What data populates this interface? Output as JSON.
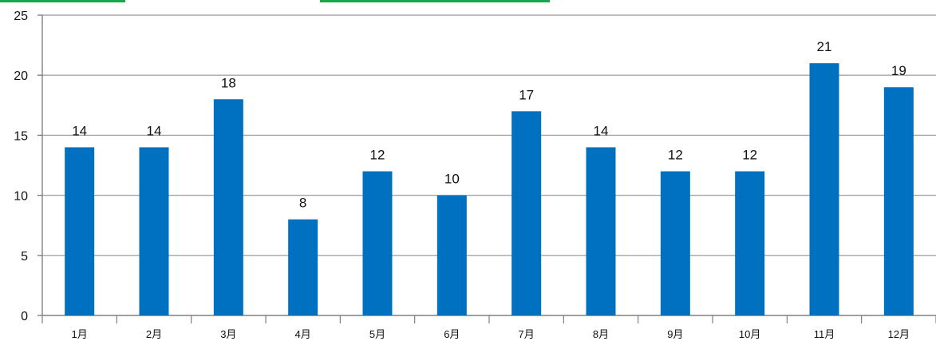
{
  "chart_data": {
    "type": "bar",
    "title": "",
    "xlabel": "",
    "ylabel": "",
    "categories": [
      "1月",
      "2月",
      "3月",
      "4月",
      "5月",
      "6月",
      "7月",
      "8月",
      "9月",
      "10月",
      "11月",
      "12月"
    ],
    "values": [
      14,
      14,
      18,
      8,
      12,
      10,
      17,
      14,
      12,
      12,
      21,
      19
    ],
    "ylim": [
      0,
      25
    ],
    "yticks": [
      0,
      5,
      10,
      15,
      20,
      25
    ],
    "grid": true,
    "legend": "none",
    "data_labels": true
  },
  "colors": {
    "bar": "#0070C0",
    "gridline": "#A6A6A6",
    "axis": "#808080",
    "accent_tabs": "#1AA548"
  }
}
